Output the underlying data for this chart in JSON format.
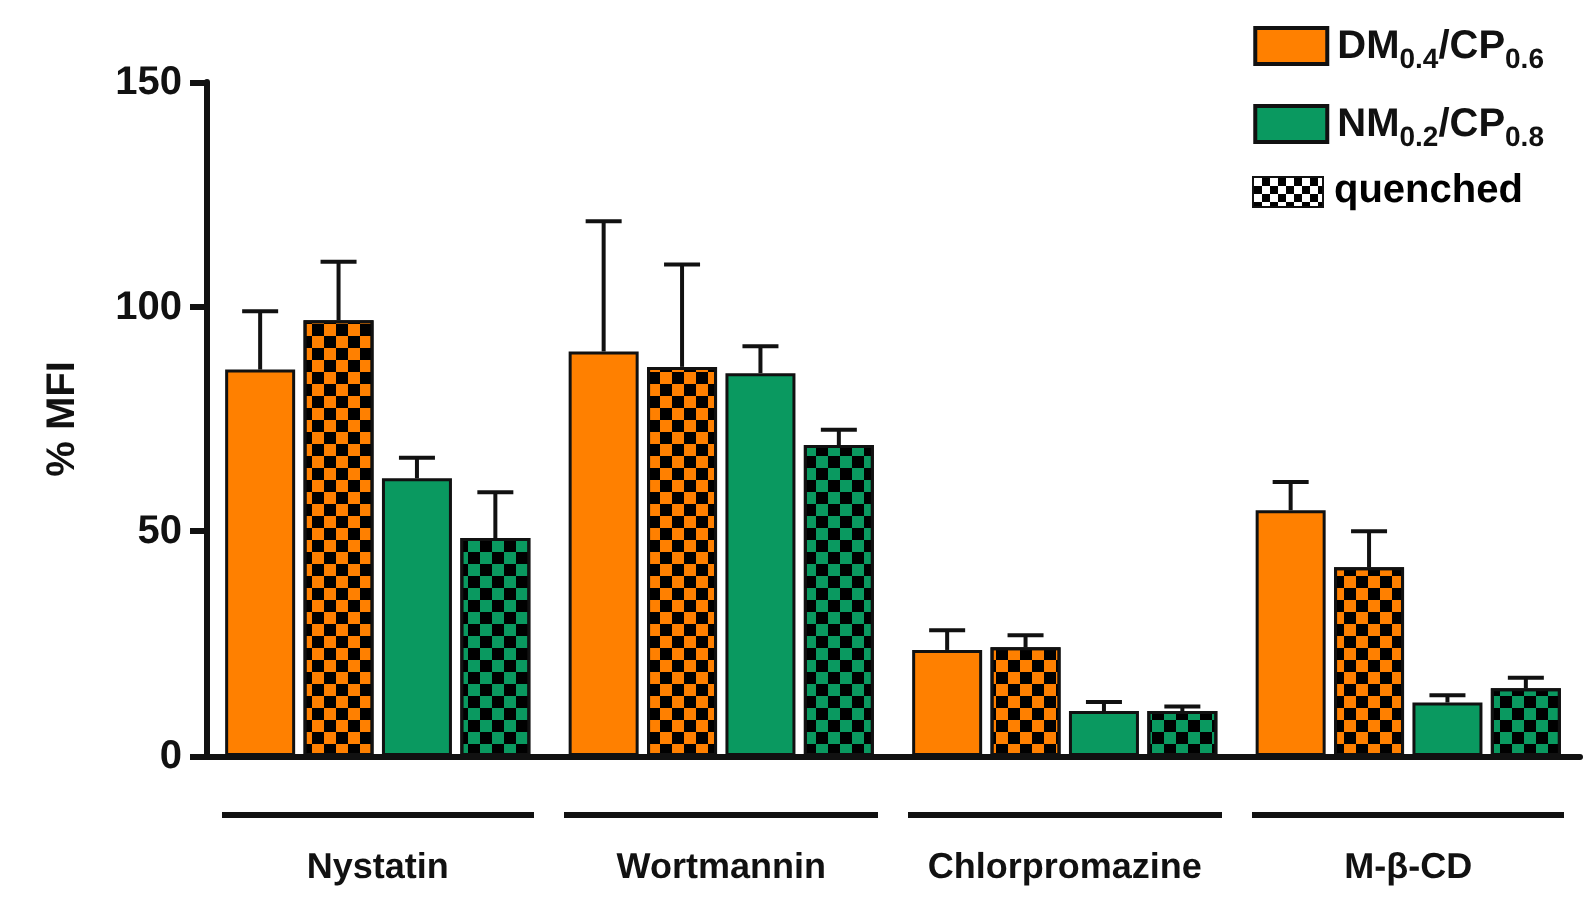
{
  "chart_data": {
    "type": "bar",
    "ylabel": "% MFI",
    "categories": [
      "Nystatin",
      "Wortmannin",
      "Chlorpromazine",
      "M-β-CD"
    ],
    "series": [
      {
        "name": "DM$_{0.4}$/CP$_{0.6}$",
        "color": "#ff8000",
        "values": [
          86,
          90,
          23.6,
          54.7
        ],
        "errors": [
          [
            86,
            99
          ],
          [
            90,
            119
          ],
          [
            23.6,
            28
          ],
          [
            54.7,
            61
          ]
        ]
      },
      {
        "color": "#ff8000",
        "values": [
          97,
          86.6,
          24.2,
          42
        ],
        "errors": [
          [
            97,
            110
          ],
          [
            86.6,
            109.4
          ],
          [
            24.2,
            26.9
          ],
          [
            42,
            50
          ]
        ]
      },
      {
        "name": "NM$_{0.2}$/CP$_{0.8}$",
        "color": "#0a9960",
        "values": [
          61.8,
          85.2,
          10,
          11.9
        ],
        "errors": [
          [
            61.8,
            66.4
          ],
          [
            85.2,
            91.2
          ],
          [
            10,
            12
          ],
          [
            11.9,
            13.5
          ]
        ]
      },
      {
        "color": "#0a9960",
        "values": [
          48.5,
          69.2,
          10,
          15.1
        ],
        "errors": [
          [
            48.5,
            58.7
          ],
          [
            69.2,
            72.6
          ],
          [
            10,
            11
          ],
          [
            15.1,
            17.4
          ]
        ]
      }
    ],
    "annotations": [
      "quenched"
    ],
    "ylim": [
      0,
      150
    ],
    "yticks": [
      0,
      50,
      100,
      150
    ],
    "grid": false,
    "legend": "top right"
  }
}
